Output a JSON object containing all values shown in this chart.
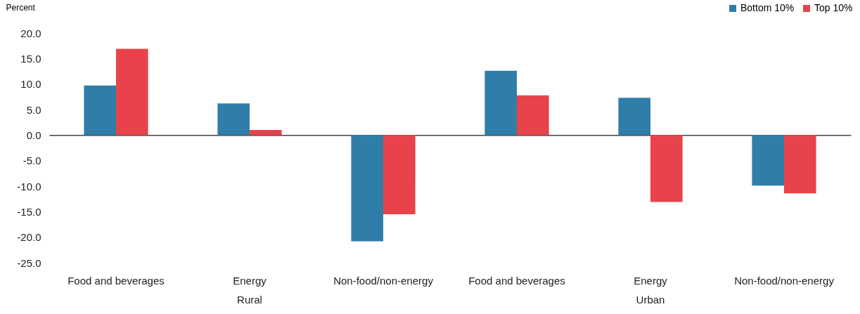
{
  "chart_data": {
    "type": "bar",
    "ylabel": "Percent",
    "categories": [
      "Food and beverages",
      "Energy",
      "Non-food/non-energy",
      "Food and beverages",
      "Energy",
      "Non-food/non-energy"
    ],
    "series": [
      {
        "name": "Bottom 10%",
        "color": "#2f7ea9",
        "values": [
          9.7,
          6.2,
          -20.8,
          12.6,
          7.3,
          -9.9
        ]
      },
      {
        "name": "Top 10%",
        "color": "#e8434a",
        "values": [
          16.9,
          1.0,
          -15.5,
          7.8,
          -13.1,
          -11.4
        ]
      }
    ],
    "ylim": [
      -25,
      20
    ],
    "yticks": [
      {
        "value": -25,
        "label": "-25.0"
      },
      {
        "value": -20,
        "label": "-20.0"
      },
      {
        "value": -15,
        "label": "-15.0"
      },
      {
        "value": -10,
        "label": "-10.0"
      },
      {
        "value": -5,
        "label": "-5.0"
      },
      {
        "value": 0,
        "label": "0.0"
      },
      {
        "value": 5,
        "label": "5.0"
      },
      {
        "value": 10,
        "label": "10.0"
      },
      {
        "value": 15,
        "label": "15.0"
      },
      {
        "value": 20,
        "label": "20.0"
      }
    ],
    "annotations": [
      "Rural",
      "Urban"
    ],
    "legend": "top right"
  }
}
